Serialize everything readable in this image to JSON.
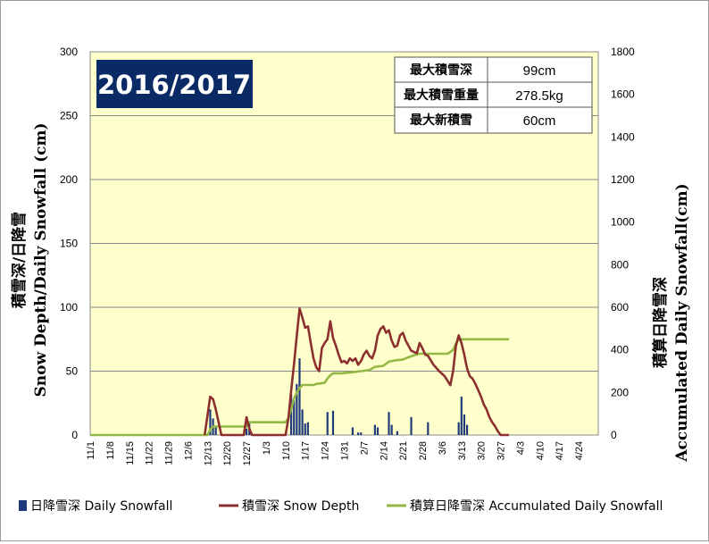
{
  "colors": {
    "plot_bg": "#ffffcc",
    "snowfall": "#1f3a7a",
    "snow_depth": "#8b2f2f",
    "accumulated": "#93b845",
    "season_bg": "#0a2a66"
  },
  "season_label": "2016/2017",
  "stats": [
    {
      "label": "最大積雪深",
      "value": "99cm"
    },
    {
      "label": "最大積雪重量",
      "value": "278.5kg"
    },
    {
      "label": "最大新積雪",
      "value": "60cm"
    }
  ],
  "chart_data": {
    "type": "bar+line",
    "x_ticks": [
      "11/1",
      "11/8",
      "11/15",
      "11/22",
      "11/29",
      "12/6",
      "12/13",
      "12/20",
      "12/27",
      "1/3",
      "1/10",
      "1/17",
      "1/24",
      "1/31",
      "2/7",
      "2/14",
      "2/21",
      "2/28",
      "3/6",
      "3/13",
      "3/20",
      "3/27",
      "4/3",
      "4/10",
      "4/17",
      "4/24"
    ],
    "xlim_days": [
      0,
      182
    ],
    "y_left": {
      "label": "積雪深/日降雪\nSnow Depth/Daily Snowfall (cm)",
      "lim": [
        0,
        300
      ],
      "ticks": [
        0,
        50,
        100,
        150,
        200,
        250,
        300
      ]
    },
    "y_right": {
      "label": "積算日降雪深\nAccumulated Daily Snowfall(cm)",
      "lim": [
        0,
        1800
      ],
      "ticks": [
        0,
        200,
        400,
        600,
        800,
        1000,
        1200,
        1400,
        1600,
        1800
      ]
    },
    "grid": true,
    "legend_position": "bottom",
    "series": [
      {
        "name": "日降雪深 Daily Snowfall",
        "type": "bar",
        "axis": "left",
        "points": [
          [
            43,
            20
          ],
          [
            44,
            13
          ],
          [
            45,
            7
          ],
          [
            56,
            5
          ],
          [
            57,
            10
          ],
          [
            72,
            32
          ],
          [
            73,
            27
          ],
          [
            74,
            40
          ],
          [
            75,
            60
          ],
          [
            76,
            20
          ],
          [
            77,
            9
          ],
          [
            78,
            10
          ],
          [
            85,
            18
          ],
          [
            87,
            19
          ],
          [
            94,
            6
          ],
          [
            96,
            2
          ],
          [
            97,
            2
          ],
          [
            102,
            8
          ],
          [
            103,
            6
          ],
          [
            107,
            18
          ],
          [
            108,
            8
          ],
          [
            110,
            3
          ],
          [
            115,
            14
          ],
          [
            121,
            10
          ],
          [
            132,
            10
          ],
          [
            133,
            30
          ],
          [
            134,
            16
          ],
          [
            135,
            8
          ]
        ]
      },
      {
        "name": "積雪深 Snow Depth",
        "type": "line",
        "axis": "left",
        "points": [
          [
            41,
            0
          ],
          [
            42,
            15
          ],
          [
            43,
            30
          ],
          [
            44,
            28
          ],
          [
            45,
            20
          ],
          [
            46,
            10
          ],
          [
            47,
            0
          ],
          [
            55,
            0
          ],
          [
            56,
            14
          ],
          [
            57,
            5
          ],
          [
            58,
            0
          ],
          [
            70,
            0
          ],
          [
            71,
            13
          ],
          [
            72,
            35
          ],
          [
            73,
            55
          ],
          [
            74,
            78
          ],
          [
            75,
            99
          ],
          [
            76,
            92
          ],
          [
            77,
            84
          ],
          [
            78,
            85
          ],
          [
            79,
            72
          ],
          [
            80,
            60
          ],
          [
            81,
            53
          ],
          [
            82,
            50
          ],
          [
            83,
            68
          ],
          [
            84,
            72
          ],
          [
            85,
            75
          ],
          [
            86,
            89
          ],
          [
            87,
            76
          ],
          [
            88,
            70
          ],
          [
            89,
            63
          ],
          [
            90,
            57
          ],
          [
            91,
            58
          ],
          [
            92,
            56
          ],
          [
            93,
            60
          ],
          [
            94,
            58
          ],
          [
            95,
            60
          ],
          [
            96,
            55
          ],
          [
            97,
            58
          ],
          [
            98,
            63
          ],
          [
            99,
            66
          ],
          [
            100,
            62
          ],
          [
            101,
            60
          ],
          [
            102,
            66
          ],
          [
            103,
            78
          ],
          [
            104,
            83
          ],
          [
            105,
            85
          ],
          [
            106,
            80
          ],
          [
            107,
            82
          ],
          [
            108,
            74
          ],
          [
            109,
            69
          ],
          [
            110,
            70
          ],
          [
            111,
            78
          ],
          [
            112,
            80
          ],
          [
            113,
            74
          ],
          [
            114,
            70
          ],
          [
            115,
            66
          ],
          [
            116,
            65
          ],
          [
            117,
            64
          ],
          [
            118,
            72
          ],
          [
            119,
            68
          ],
          [
            120,
            63
          ],
          [
            121,
            62
          ],
          [
            123,
            55
          ],
          [
            125,
            50
          ],
          [
            127,
            46
          ],
          [
            129,
            39
          ],
          [
            130,
            50
          ],
          [
            131,
            70
          ],
          [
            132,
            78
          ],
          [
            133,
            72
          ],
          [
            134,
            63
          ],
          [
            135,
            52
          ],
          [
            136,
            46
          ],
          [
            137,
            44
          ],
          [
            138,
            40
          ],
          [
            139,
            35
          ],
          [
            140,
            30
          ],
          [
            141,
            24
          ],
          [
            142,
            20
          ],
          [
            143,
            14
          ],
          [
            144,
            10
          ],
          [
            145,
            7
          ],
          [
            146,
            3
          ],
          [
            147,
            0
          ],
          [
            150,
            0
          ]
        ]
      },
      {
        "name": "積算日降雪深 Accumulated Daily Snowfall",
        "type": "line",
        "axis": "right",
        "points": [
          [
            0,
            0
          ],
          [
            42,
            0
          ],
          [
            43,
            25
          ],
          [
            44,
            40
          ],
          [
            45,
            40
          ],
          [
            56,
            40
          ],
          [
            57,
            60
          ],
          [
            70,
            60
          ],
          [
            71,
            80
          ],
          [
            72,
            120
          ],
          [
            73,
            170
          ],
          [
            74,
            200
          ],
          [
            75,
            220
          ],
          [
            76,
            235
          ],
          [
            80,
            235
          ],
          [
            81,
            240
          ],
          [
            84,
            245
          ],
          [
            85,
            265
          ],
          [
            86,
            280
          ],
          [
            87,
            290
          ],
          [
            90,
            290
          ],
          [
            94,
            295
          ],
          [
            97,
            300
          ],
          [
            100,
            305
          ],
          [
            102,
            320
          ],
          [
            105,
            325
          ],
          [
            107,
            345
          ],
          [
            109,
            350
          ],
          [
            112,
            355
          ],
          [
            114,
            365
          ],
          [
            116,
            375
          ],
          [
            118,
            382
          ],
          [
            120,
            382
          ],
          [
            125,
            382
          ],
          [
            127,
            382
          ],
          [
            128,
            382
          ],
          [
            129,
            390
          ],
          [
            130,
            400
          ],
          [
            131,
            430
          ],
          [
            132,
            450
          ],
          [
            147,
            450
          ],
          [
            150,
            450
          ]
        ]
      }
    ]
  }
}
